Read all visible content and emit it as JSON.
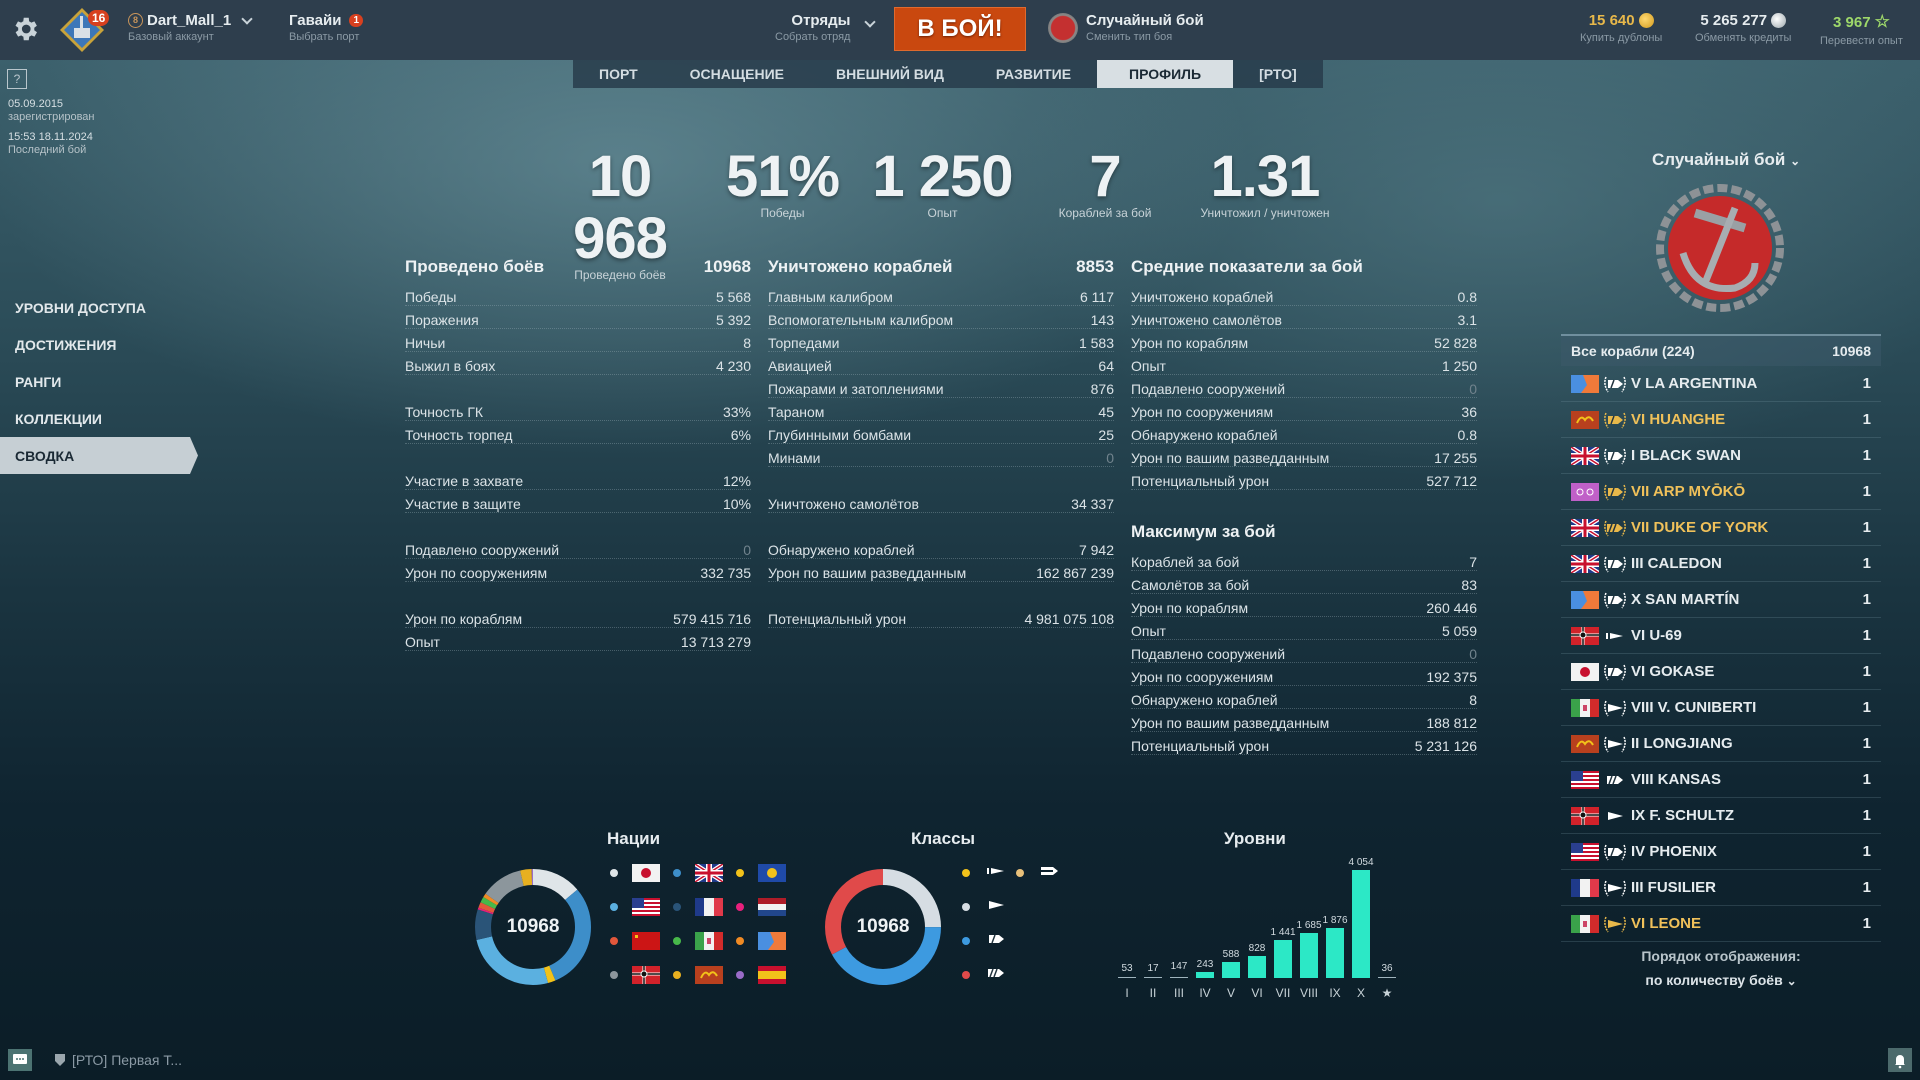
{
  "topbar": {
    "account_level": "16",
    "account_name": "Dart_Mall_1",
    "account_rank_badge": "8",
    "account_type": "Базовый аккаунт",
    "port_name": "Гавайи",
    "port_badge": "1",
    "port_sub": "Выбрать порт",
    "squad_label": "Отряды",
    "squad_sub": "Собрать отряд",
    "battle_button": "В БОЙ!",
    "battle_mode": "Случайный бой",
    "battle_mode_sub": "Сменить тип боя",
    "doubloons": "15 640",
    "doubloons_sub": "Купить дублоны",
    "credits": "5 265 277",
    "credits_sub": "Обменять кредиты",
    "free_xp": "3 967",
    "free_xp_sub": "Перевести опыт",
    "colors": {
      "doubloons": "#e8b84a",
      "credits": "#e6ecef",
      "free_xp": "#9ed86a",
      "battle_button": "#c9480f"
    }
  },
  "tabs": [
    {
      "label": "ПОРТ",
      "active": false
    },
    {
      "label": "ОСНАЩЕНИЕ",
      "active": false
    },
    {
      "label": "ВНЕШНИЙ ВИД",
      "active": false
    },
    {
      "label": "РАЗВИТИЕ",
      "active": false
    },
    {
      "label": "ПРОФИЛЬ",
      "active": true
    },
    {
      "label": "[РТО]",
      "active": false
    }
  ],
  "info": {
    "help": "?",
    "registered_date": "05.09.2015",
    "registered_label": "зарегистрирован",
    "last_battle_date": "15:53  18.11.2024",
    "last_battle_label": "Последний бой"
  },
  "sidebar": {
    "items": [
      {
        "label": "УРОВНИ ДОСТУПА",
        "active": false
      },
      {
        "label": "ДОСТИЖЕНИЯ",
        "active": false
      },
      {
        "label": "РАНГИ",
        "active": false
      },
      {
        "label": "КОЛЛЕКЦИИ",
        "active": false
      },
      {
        "label": "СВОДКА",
        "active": true
      }
    ]
  },
  "summary": [
    {
      "value": "10 968",
      "label": "Проведено боёв"
    },
    {
      "value": "51%",
      "label": "Победы"
    },
    {
      "value": "1 250",
      "label": "Опыт"
    },
    {
      "value": "7",
      "label": "Кораблей за бой"
    },
    {
      "value": "1.31",
      "label": "Уничтожил / уничтожен"
    }
  ],
  "battles": {
    "title": "Проведено боёв",
    "total": "10968",
    "rows": [
      {
        "label": "Победы",
        "value": "5 568"
      },
      {
        "label": "Поражения",
        "value": "5 392"
      },
      {
        "label": "Ничьи",
        "value": "8"
      },
      {
        "label": "Выжил в боях",
        "value": "4 230"
      },
      null,
      {
        "label": "Точность ГК",
        "value": "33%"
      },
      {
        "label": "Точность торпед",
        "value": "6%"
      },
      null,
      {
        "label": "Участие в захвате",
        "value": "12%"
      },
      {
        "label": "Участие в защите",
        "value": "10%"
      },
      null,
      {
        "label": "Подавлено сооружений",
        "value": "0",
        "zero": true
      },
      {
        "label": "Урон по сооружениям",
        "value": "332 735"
      },
      null,
      {
        "label": "Урон по кораблям",
        "value": "579 415 716"
      },
      {
        "label": "Опыт",
        "value": "13 713 279"
      }
    ]
  },
  "destroyed": {
    "title": "Уничтожено кораблей",
    "total": "8853",
    "rows": [
      {
        "label": "Главным калибром",
        "value": "6 117"
      },
      {
        "label": "Вспомогательным калибром",
        "value": "143"
      },
      {
        "label": "Торпедами",
        "value": "1 583"
      },
      {
        "label": "Авиацией",
        "value": "64"
      },
      {
        "label": "Пожарами и затоплениями",
        "value": "876"
      },
      {
        "label": "Тараном",
        "value": "45"
      },
      {
        "label": "Глубинными бомбами",
        "value": "25"
      },
      {
        "label": "Минами",
        "value": "0",
        "zero": true
      },
      null,
      {
        "label": "Уничтожено самолётов",
        "value": "34 337"
      },
      null,
      {
        "label": "Обнаружено кораблей",
        "value": "7 942"
      },
      {
        "label": "Урон по вашим разведданным",
        "value": "162 867 239"
      },
      null,
      {
        "label": "Потенциальный урон",
        "value": "4 981 075 108"
      }
    ]
  },
  "average": {
    "title": "Средние показатели за бой",
    "rows": [
      {
        "label": "Уничтожено кораблей",
        "value": "0.8"
      },
      {
        "label": "Уничтожено самолётов",
        "value": "3.1"
      },
      {
        "label": "Урон по кораблям",
        "value": "52 828"
      },
      {
        "label": "Опыт",
        "value": "1 250"
      },
      {
        "label": "Подавлено сооружений",
        "value": "0",
        "zero": true
      },
      {
        "label": "Урон по сооружениям",
        "value": "36"
      },
      {
        "label": "Обнаружено кораблей",
        "value": "0.8"
      },
      {
        "label": "Урон по вашим разведданным",
        "value": "17 255"
      },
      {
        "label": "Потенциальный урон",
        "value": "527 712"
      }
    ]
  },
  "maximum": {
    "title": "Максимум за бой",
    "rows": [
      {
        "label": "Кораблей за бой",
        "value": "7"
      },
      {
        "label": "Самолётов за бой",
        "value": "83"
      },
      {
        "label": "Урон по кораблям",
        "value": "260 446"
      },
      {
        "label": "Опыт",
        "value": "5 059"
      },
      {
        "label": "Подавлено сооружений",
        "value": "0",
        "zero": true
      },
      {
        "label": "Урон по сооружениям",
        "value": "192 375"
      },
      {
        "label": "Обнаружено кораблей",
        "value": "8"
      },
      {
        "label": "Урон по вашим разведданным",
        "value": "188 812"
      },
      {
        "label": "Потенциальный урон",
        "value": "5 231 126"
      }
    ]
  },
  "right_panel": {
    "mode": "Случайный бой",
    "list_header": "Все корабли (224)",
    "list_total": "10968",
    "ships": [
      {
        "name": "V LA ARGENTINA",
        "count": "1",
        "nation": "panamerica",
        "class": "cruiser",
        "premium": false
      },
      {
        "name": "VI HUANGHE",
        "count": "1",
        "nation": "panasia",
        "class": "cruiser",
        "premium": true
      },
      {
        "name": "I BLACK SWAN",
        "count": "1",
        "nation": "uk",
        "class": "cruiser",
        "premium": false
      },
      {
        "name": "VII ARP MYŌKŌ",
        "count": "1",
        "nation": "arp",
        "class": "cruiser",
        "premium": true
      },
      {
        "name": "VII DUKE OF YORK",
        "count": "1",
        "nation": "uk",
        "class": "battleship",
        "premium": true
      },
      {
        "name": "III CALEDON",
        "count": "1",
        "nation": "uk",
        "class": "cruiser",
        "premium": false
      },
      {
        "name": "X SAN MARTÍN",
        "count": "1",
        "nation": "panamerica",
        "class": "cruiser",
        "premium": false
      },
      {
        "name": "VI U-69",
        "count": "1",
        "nation": "germany",
        "class": "submarine",
        "premium": false
      },
      {
        "name": "VI GOKASE",
        "count": "1",
        "nation": "japan",
        "class": "cruiser",
        "premium": false
      },
      {
        "name": "VIII V. CUNIBERTI",
        "count": "1",
        "nation": "italy",
        "class": "destroyer",
        "premium": false
      },
      {
        "name": "II LONGJIANG",
        "count": "1",
        "nation": "panasia",
        "class": "destroyer",
        "premium": false
      },
      {
        "name": "VIII KANSAS",
        "count": "1",
        "nation": "usa",
        "class": "battleship",
        "premium": false
      },
      {
        "name": "IX F. SCHULTZ",
        "count": "1",
        "nation": "germany",
        "class": "destroyer",
        "premium": false
      },
      {
        "name": "IV PHOENIX",
        "count": "1",
        "nation": "usa",
        "class": "cruiser",
        "premium": false
      },
      {
        "name": "III FUSILIER",
        "count": "1",
        "nation": "france",
        "class": "destroyer",
        "premium": false
      },
      {
        "name": "VI LEONE",
        "count": "1",
        "nation": "italy",
        "class": "destroyer",
        "premium": true
      }
    ],
    "order_label": "Порядок отображения:",
    "order_value": "по количеству боёв"
  },
  "charts": {
    "nations_title": "Нации",
    "classes_title": "Классы",
    "tiers_title": "Уровни",
    "center_total": "10968"
  },
  "chart_data": [
    {
      "type": "pie",
      "title": "Нации",
      "total": 10968,
      "categories": [
        "Япония",
        "Великобритания",
        "Европа",
        "США",
        "Франция",
        "Нидерланды",
        "СССР",
        "Италия",
        "Пан-Америка",
        "Германия",
        "Пан-Азия",
        "Испания"
      ],
      "colors": [
        "#dfe5e8",
        "#3d8ec9",
        "#f2c21a",
        "#5bb0e0",
        "#2a5478",
        "#e8207c",
        "#e2573b",
        "#47b84a",
        "#f08a24",
        "#8c969c",
        "#e8b020",
        "#9a6cc8"
      ],
      "approx_share": [
        0.13,
        0.28,
        0.02,
        0.24,
        0.08,
        0.005,
        0.015,
        0.015,
        0.01,
        0.11,
        0.03,
        0.005
      ]
    },
    {
      "type": "pie",
      "title": "Классы",
      "total": 10968,
      "categories": [
        "Подводные лодки",
        "Авианосцы",
        "Эсминцы",
        "Крейсера",
        "Линкоры"
      ],
      "colors": [
        "#f2c21a",
        "#e8c07a",
        "#d6dde3",
        "#3d9ae0",
        "#e04a4a"
      ],
      "approx_share": [
        0.0,
        0.0,
        0.25,
        0.42,
        0.33
      ]
    },
    {
      "type": "bar",
      "title": "Уровни",
      "categories": [
        "I",
        "II",
        "III",
        "IV",
        "V",
        "VI",
        "VII",
        "VIII",
        "IX",
        "X",
        "★"
      ],
      "values": [
        53,
        17,
        147,
        243,
        588,
        828,
        1441,
        1685,
        1876,
        4054,
        36
      ],
      "color": "#2ce8c6"
    }
  ],
  "legend": {
    "nations": [
      {
        "nation": "japan",
        "dot": "#dfe5e8"
      },
      {
        "nation": "uk",
        "dot": "#3d8ec9"
      },
      {
        "nation": "europe",
        "dot": "#f2c21a"
      },
      {
        "nation": "usa",
        "dot": "#5bb0e0"
      },
      {
        "nation": "france",
        "dot": "#2a5478"
      },
      {
        "nation": "netherlands",
        "dot": "#e8207c"
      },
      {
        "nation": "ussr",
        "dot": "#e2573b"
      },
      {
        "nation": "italy",
        "dot": "#47b84a"
      },
      {
        "nation": "panamerica",
        "dot": "#f08a24"
      },
      {
        "nation": "germany",
        "dot": "#8c969c"
      },
      {
        "nation": "panasia",
        "dot": "#e8b020"
      },
      {
        "nation": "spain",
        "dot": "#9a6cc8"
      }
    ],
    "classes": [
      {
        "cls": "submarine",
        "dot": "#f2c21a"
      },
      {
        "cls": "carrier",
        "dot": "#e8c07a"
      },
      {
        "cls": "destroyer",
        "dot": "#d6dde3"
      },
      {
        "cls": "cruiser",
        "dot": "#3d9ae0"
      },
      {
        "cls": "battleship",
        "dot": "#e04a4a"
      }
    ]
  },
  "bottom": {
    "clan_chat": "[РТО] Первая Т..."
  }
}
